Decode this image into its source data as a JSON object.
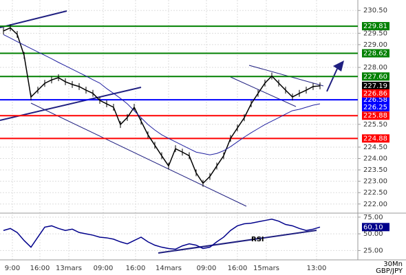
{
  "chart_data": [
    {
      "type": "line",
      "xlim": [
        -0.5,
        51.5
      ],
      "xticks": [
        {
          "value": 1.3,
          "label": "9:00"
        },
        {
          "value": 5.3,
          "label": "16:00"
        },
        {
          "value": 9.5,
          "label": "13mars"
        },
        {
          "value": 14.5,
          "label": "09:00"
        },
        {
          "value": 19.2,
          "label": "16:00"
        },
        {
          "value": 24,
          "label": "14mars"
        },
        {
          "value": 29.5,
          "label": "09:00"
        },
        {
          "value": 34,
          "label": "16:00"
        },
        {
          "value": 38.2,
          "label": "15mars"
        },
        {
          "value": 45.5,
          "label": "13:00"
        }
      ],
      "ylim": [
        221.6,
        230.96
      ],
      "yticks": [
        {
          "value": 230.5,
          "label": "230.50"
        },
        {
          "value": 229.5,
          "label": "229.50"
        },
        {
          "value": 229,
          "label": "229.00"
        },
        {
          "value": 228,
          "label": "228.00"
        },
        {
          "value": 225.5,
          "label": "225.50"
        },
        {
          "value": 224.5,
          "label": "224.50"
        },
        {
          "value": 224,
          "label": "224.00"
        },
        {
          "value": 223.5,
          "label": "223.50"
        },
        {
          "value": 223,
          "label": "223.00"
        },
        {
          "value": 222.5,
          "label": "222.50"
        },
        {
          "value": 222,
          "label": "222.00"
        }
      ],
      "grid": true,
      "series": [
        {
          "color": "#000000",
          "values": [
            229.6,
            229.74,
            229.45,
            228.53,
            226.7,
            227.0,
            227.3,
            227.45,
            227.55,
            227.37,
            227.25,
            227.16,
            227.0,
            226.86,
            226.55,
            226.4,
            226.25,
            225.49,
            225.8,
            226.25,
            225.64,
            225.04,
            224.58,
            224.12,
            223.67,
            224.43,
            224.28,
            224.12,
            223.37,
            222.91,
            223.21,
            223.67,
            224.12,
            224.88,
            225.34,
            225.79,
            226.4,
            226.86,
            227.31,
            227.62,
            227.31,
            227.0,
            226.7,
            226.86,
            227.0,
            227.16,
            227.19
          ]
        },
        {
          "color": "#1f1fa0",
          "values": [
            229.44,
            229.29,
            229.13,
            228.98,
            228.83,
            228.68,
            228.53,
            228.38,
            228.22,
            228.07,
            227.92,
            227.77,
            227.62,
            227.46,
            227.31,
            227.07,
            226.86,
            226.64,
            226.4,
            226.1,
            225.79,
            225.49,
            225.25,
            225.04,
            224.88,
            224.73,
            224.58,
            224.43,
            224.28,
            224.22,
            224.16,
            224.22,
            224.34,
            224.52,
            224.73,
            224.94,
            225.13,
            225.31,
            225.49,
            225.64,
            225.79,
            225.95,
            226.1,
            226.16,
            226.25,
            226.34,
            226.4
          ]
        }
      ],
      "levels": [
        {
          "value": 229.81,
          "label": "229.81",
          "color": "#008000"
        },
        {
          "value": 228.62,
          "label": "228.62",
          "color": "#008000"
        },
        {
          "value": 227.6,
          "label": "227.60",
          "color": "#008000"
        },
        {
          "value": 226.58,
          "label": "226.58",
          "color": "#0000ff"
        },
        {
          "value": 225.88,
          "label": "225.88",
          "color": "#ff0000"
        },
        {
          "value": 224.88,
          "label": "224.88",
          "color": "#ff0000"
        }
      ],
      "markers": [
        {
          "value": 227.19,
          "label": "227.19",
          "color": "#000000"
        },
        {
          "value": 226.86,
          "label": "226.86",
          "color": "#ff0000"
        },
        {
          "value": 226.25,
          "label": "226.25",
          "color": "#0000ff"
        }
      ],
      "timeframe": "30Mn",
      "symbol": "GBP/JPY"
    },
    {
      "type": "line",
      "xlim": [
        -0.5,
        51.5
      ],
      "ylim": [
        11,
        81
      ],
      "yticks": [
        {
          "value": 75,
          "label": "75.00"
        },
        {
          "value": 50,
          "label": "50.00"
        },
        {
          "value": 25,
          "label": "25.00"
        }
      ],
      "annotation": "RSI",
      "series": [
        {
          "color": "#00008b",
          "values": [
            55,
            58,
            52,
            40,
            30,
            45,
            60,
            62,
            58,
            55,
            57,
            52,
            50,
            48,
            45,
            44,
            42,
            38,
            35,
            40,
            45,
            38,
            33,
            30,
            28,
            27,
            32,
            35,
            33,
            28,
            30,
            38,
            45,
            55,
            62,
            65,
            66,
            68,
            70,
            72,
            69,
            64,
            62,
            58,
            55,
            57,
            60.1
          ]
        }
      ],
      "markers": [
        {
          "value": 60.1,
          "label": "60.10",
          "color": "#00008b"
        }
      ]
    }
  ]
}
